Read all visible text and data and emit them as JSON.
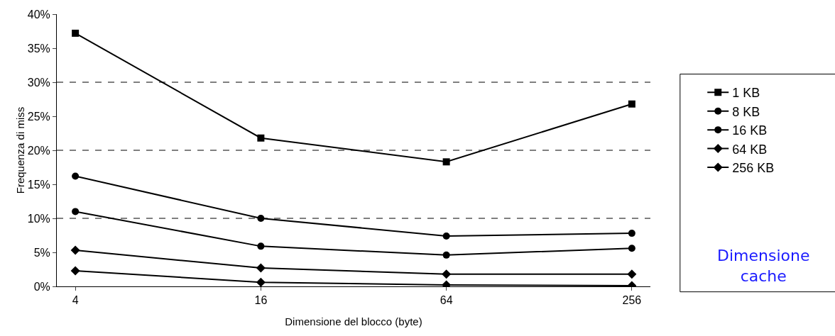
{
  "chart_data": {
    "type": "line",
    "xlabel": "Dimensione del blocco (byte)",
    "ylabel": "Frequenza di miss",
    "legend_title": "Dimensione cache",
    "legend": "right",
    "grid": false,
    "line_style": "solid",
    "categories": [
      "4",
      "16",
      "64",
      "256"
    ],
    "ylim": [
      0,
      40
    ],
    "yticks": [
      {
        "value": 0,
        "label": "0%"
      },
      {
        "value": 5,
        "label": "5%"
      },
      {
        "value": 10,
        "label": "10%"
      },
      {
        "value": 15,
        "label": "15%"
      },
      {
        "value": 20,
        "label": "20%"
      },
      {
        "value": 25,
        "label": "25%"
      },
      {
        "value": 30,
        "label": "30%"
      },
      {
        "value": 35,
        "label": "35%"
      },
      {
        "value": 40,
        "label": "40%"
      }
    ],
    "ref_lines": [
      {
        "axis": "y",
        "value": 10,
        "line_style": "dashed"
      },
      {
        "axis": "y",
        "value": 20,
        "line_style": "dashed"
      },
      {
        "axis": "y",
        "value": 30,
        "line_style": "dashed"
      }
    ],
    "series": [
      {
        "name": "1 KB",
        "color": "#000000",
        "marker": "square",
        "values": [
          37.2,
          21.8,
          18.3,
          26.8
        ]
      },
      {
        "name": "8 KB",
        "color": "#000000",
        "marker": "circle",
        "values": [
          16.2,
          10.0,
          7.4,
          7.8
        ]
      },
      {
        "name": "16 KB",
        "color": "#000000",
        "marker": "circle",
        "values": [
          11.0,
          5.9,
          4.6,
          5.6
        ]
      },
      {
        "name": "64 KB",
        "color": "#000000",
        "marker": "diamond",
        "values": [
          5.3,
          2.7,
          1.8,
          1.8
        ]
      },
      {
        "name": "256 KB",
        "color": "#000000",
        "marker": "diamond",
        "values": [
          2.3,
          0.6,
          0.2,
          0.1
        ]
      }
    ]
  }
}
